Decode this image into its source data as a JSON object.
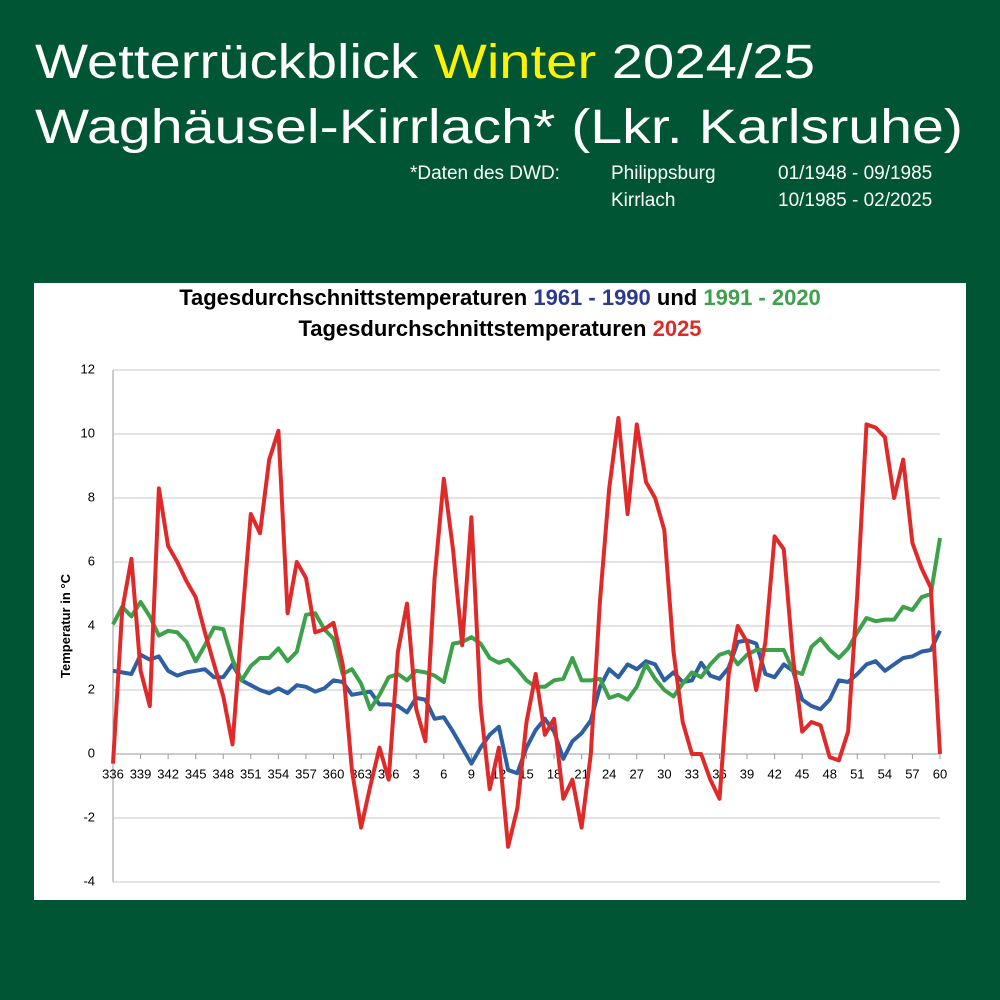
{
  "header": {
    "line1": [
      "Wetterrückblick",
      "Winter",
      "2024/25"
    ],
    "line2": "Waghäusel-Kirrlach* (Lkr. Karlsruhe)",
    "source": {
      "label": "*Daten des DWD:",
      "rows": [
        [
          "Philippsburg",
          "01/1948 - 09/1985"
        ],
        [
          "Kirrlach",
          "10/1985 - 02/2025"
        ]
      ]
    }
  },
  "chart_data": {
    "type": "line",
    "title_text": "Tagesdurchschnittstemperaturen",
    "title_conj": "und",
    "y_label": "Temperatur in °C",
    "categories": [
      336,
      null,
      null,
      339,
      null,
      null,
      342,
      null,
      null,
      345,
      null,
      null,
      348,
      null,
      null,
      351,
      null,
      null,
      354,
      null,
      null,
      357,
      null,
      null,
      360,
      null,
      null,
      363,
      null,
      null,
      366,
      null,
      null,
      3,
      null,
      null,
      6,
      null,
      null,
      9,
      null,
      null,
      12,
      null,
      null,
      15,
      null,
      null,
      18,
      null,
      null,
      21,
      null,
      null,
      24,
      null,
      null,
      27,
      null,
      null,
      30,
      null,
      null,
      33,
      null,
      null,
      36,
      null,
      null,
      39,
      null,
      null,
      42,
      null,
      null,
      45,
      null,
      null,
      48,
      null,
      null,
      51,
      null,
      null,
      54,
      null,
      null,
      57,
      null,
      null,
      60
    ],
    "ylim": [
      -4,
      12
    ],
    "yticks": [
      -4,
      -2,
      0,
      2,
      4,
      6,
      8,
      10,
      12
    ],
    "grid": true,
    "series": [
      {
        "name": "1961 - 1990",
        "color": "#2e5fa3",
        "values": [
          2.6,
          2.55,
          2.5,
          3.1,
          2.95,
          3.05,
          2.6,
          2.45,
          2.55,
          2.6,
          2.65,
          2.4,
          2.4,
          2.8,
          2.3,
          2.15,
          2.0,
          1.9,
          2.05,
          1.9,
          2.15,
          2.1,
          1.95,
          2.05,
          2.3,
          2.25,
          1.85,
          1.9,
          1.95,
          1.55,
          1.55,
          1.5,
          1.3,
          1.75,
          1.7,
          1.1,
          1.15,
          0.7,
          0.2,
          -0.3,
          0.2,
          0.6,
          0.85,
          -0.5,
          -0.6,
          0.2,
          0.75,
          1.1,
          0.7,
          -0.15,
          0.4,
          0.65,
          1.05,
          2.1,
          2.65,
          2.4,
          2.8,
          2.65,
          2.9,
          2.8,
          2.3,
          2.55,
          2.25,
          2.3,
          2.85,
          2.45,
          2.35,
          2.7,
          3.5,
          3.55,
          3.45,
          2.5,
          2.4,
          2.8,
          2.6,
          1.7,
          1.5,
          1.4,
          1.7,
          2.3,
          2.25,
          2.5,
          2.8,
          2.9,
          2.6,
          2.8,
          3.0,
          3.05,
          3.2,
          3.25,
          3.85
        ]
      },
      {
        "name": "1991 - 2020",
        "color": "#3da04a",
        "values": [
          4.05,
          4.6,
          4.3,
          4.75,
          4.3,
          3.7,
          3.85,
          3.8,
          3.5,
          2.9,
          3.4,
          3.95,
          3.9,
          2.95,
          2.3,
          2.75,
          3.0,
          3.0,
          3.3,
          2.9,
          3.2,
          4.35,
          4.4,
          3.9,
          3.6,
          2.5,
          2.65,
          2.2,
          1.4,
          1.85,
          2.4,
          2.5,
          2.3,
          2.6,
          2.55,
          2.45,
          2.25,
          3.45,
          3.5,
          3.65,
          3.45,
          3.0,
          2.85,
          2.95,
          2.65,
          2.3,
          2.1,
          2.1,
          2.3,
          2.35,
          3.0,
          2.3,
          2.3,
          2.35,
          1.75,
          1.85,
          1.7,
          2.1,
          2.8,
          2.35,
          2.0,
          1.8,
          2.2,
          2.55,
          2.4,
          2.8,
          3.1,
          3.2,
          2.8,
          3.1,
          3.25,
          3.25,
          3.25,
          3.25,
          2.6,
          2.5,
          3.35,
          3.6,
          3.25,
          3.0,
          3.3,
          3.8,
          4.25,
          4.15,
          4.2,
          4.2,
          4.6,
          4.5,
          4.9,
          5.0,
          6.75
        ]
      },
      {
        "name": "2025",
        "color": "#e02a2a",
        "values": [
          -0.3,
          4.5,
          6.1,
          2.6,
          1.5,
          8.3,
          6.5,
          6.0,
          5.4,
          4.9,
          3.8,
          2.8,
          1.8,
          0.3,
          4.0,
          7.5,
          6.9,
          9.2,
          10.1,
          4.4,
          6.0,
          5.5,
          3.8,
          3.9,
          4.1,
          2.8,
          -0.5,
          -2.3,
          -1.0,
          0.2,
          -0.8,
          3.2,
          4.7,
          1.4,
          0.4,
          5.5,
          8.6,
          6.4,
          3.4,
          7.4,
          1.5,
          -1.1,
          0.2,
          -2.9,
          -1.7,
          1.0,
          2.5,
          0.6,
          1.1,
          -1.4,
          -0.8,
          -2.3,
          0.0,
          4.8,
          8.3,
          10.5,
          7.5,
          10.3,
          8.5,
          8.0,
          7.0,
          3.2,
          1.0,
          0.0,
          0.0,
          -0.8,
          -1.4,
          2.5,
          4.0,
          3.5,
          2.0,
          3.5,
          6.8,
          6.4,
          3.0,
          0.7,
          1.0,
          0.9,
          -0.1,
          -0.2,
          0.7,
          5.0,
          10.3,
          10.2,
          9.9,
          8.0,
          9.2,
          6.6,
          5.8,
          5.2,
          0.0
        ]
      }
    ]
  }
}
